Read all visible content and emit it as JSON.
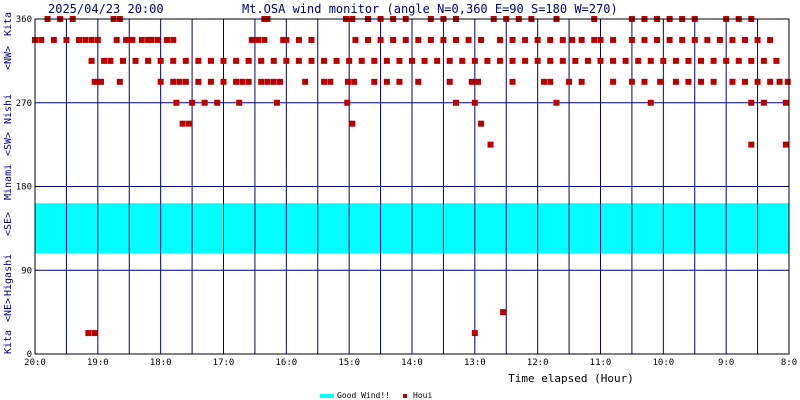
{
  "chart_data": {
    "type": "scatter",
    "title": "Mt.OSA wind monitor (angle N=0,360 E=90 S=180 W=270)",
    "timestamp": "2025/04/23 20:00",
    "xlabel": "Time elapsed (Hour)",
    "ylabel": "Kita <NE> Higashi <SE> Minami <SW> Nishi <NW> Kita",
    "x_ticks": [
      "20:0",
      "19:0",
      "18:0",
      "17:0",
      "16:0",
      "15:0",
      "14:0",
      "13:0",
      "12:0",
      "11:0",
      "10:0",
      "9:0",
      "8:0"
    ],
    "x_range_hours_elapsed": [
      0,
      12
    ],
    "y_ticks": [
      0,
      90,
      180,
      270,
      360
    ],
    "ylim": [
      0,
      360
    ],
    "grid": true,
    "good_wind_band": {
      "name": "Good Wind!!",
      "from": 108,
      "to": 162,
      "color": "#00ffff"
    },
    "series": [
      {
        "name": "Houi",
        "color": "#bb0000",
        "points": [
          [
            0.0,
            337.5
          ],
          [
            0.1,
            337.5
          ],
          [
            0.2,
            360
          ],
          [
            0.3,
            337.5
          ],
          [
            0.4,
            360
          ],
          [
            0.5,
            337.5
          ],
          [
            0.6,
            360
          ],
          [
            0.7,
            337.5
          ],
          [
            0.8,
            337.5
          ],
          [
            0.9,
            337.5
          ],
          [
            1.0,
            337.5
          ],
          [
            0.85,
            22.5
          ],
          [
            0.95,
            22.5
          ],
          [
            0.95,
            292.5
          ],
          [
            1.05,
            292.5
          ],
          [
            0.9,
            315
          ],
          [
            1.1,
            315
          ],
          [
            1.2,
            315
          ],
          [
            1.25,
            360
          ],
          [
            1.35,
            360
          ],
          [
            1.3,
            337.5
          ],
          [
            1.45,
            337.5
          ],
          [
            1.55,
            337.5
          ],
          [
            1.7,
            337.5
          ],
          [
            1.8,
            337.5
          ],
          [
            1.35,
            292.5
          ],
          [
            1.4,
            315
          ],
          [
            1.6,
            315
          ],
          [
            1.8,
            315
          ],
          [
            2.0,
            315
          ],
          [
            2.2,
            315
          ],
          [
            2.4,
            315
          ],
          [
            2.6,
            315
          ],
          [
            2.8,
            315
          ],
          [
            3.0,
            315
          ],
          [
            3.2,
            315
          ],
          [
            3.4,
            315
          ],
          [
            3.6,
            315
          ],
          [
            3.8,
            315
          ],
          [
            4.0,
            315
          ],
          [
            4.2,
            315
          ],
          [
            4.4,
            315
          ],
          [
            4.6,
            315
          ],
          [
            4.8,
            315
          ],
          [
            5.0,
            315
          ],
          [
            5.2,
            315
          ],
          [
            5.4,
            315
          ],
          [
            5.6,
            315
          ],
          [
            5.8,
            315
          ],
          [
            6.0,
            315
          ],
          [
            6.2,
            315
          ],
          [
            6.4,
            315
          ],
          [
            6.6,
            315
          ],
          [
            6.8,
            315
          ],
          [
            7.0,
            315
          ],
          [
            7.2,
            315
          ],
          [
            7.4,
            315
          ],
          [
            7.6,
            315
          ],
          [
            7.8,
            315
          ],
          [
            8.0,
            315
          ],
          [
            8.2,
            315
          ],
          [
            8.4,
            315
          ],
          [
            8.6,
            315
          ],
          [
            8.8,
            315
          ],
          [
            9.0,
            315
          ],
          [
            9.2,
            315
          ],
          [
            9.4,
            315
          ],
          [
            9.6,
            315
          ],
          [
            9.8,
            315
          ],
          [
            10.0,
            315
          ],
          [
            10.2,
            315
          ],
          [
            10.4,
            315
          ],
          [
            10.6,
            315
          ],
          [
            10.8,
            315
          ],
          [
            11.0,
            315
          ],
          [
            11.2,
            315
          ],
          [
            11.4,
            315
          ],
          [
            11.6,
            315
          ],
          [
            11.8,
            315
          ],
          [
            1.85,
            337.5
          ],
          [
            1.95,
            337.5
          ],
          [
            2.1,
            337.5
          ],
          [
            2.2,
            337.5
          ],
          [
            2.0,
            292.5
          ],
          [
            2.2,
            292.5
          ],
          [
            2.3,
            292.5
          ],
          [
            2.4,
            292.5
          ],
          [
            2.6,
            292.5
          ],
          [
            2.8,
            292.5
          ],
          [
            3.0,
            292.5
          ],
          [
            3.2,
            292.5
          ],
          [
            2.25,
            270
          ],
          [
            2.5,
            270
          ],
          [
            2.7,
            270
          ],
          [
            2.9,
            270
          ],
          [
            2.35,
            247.5
          ],
          [
            2.45,
            247.5
          ],
          [
            3.3,
            292.5
          ],
          [
            3.4,
            292.5
          ],
          [
            3.6,
            292.5
          ],
          [
            3.7,
            292.5
          ],
          [
            3.25,
            270
          ],
          [
            3.45,
            337.5
          ],
          [
            3.55,
            337.5
          ],
          [
            3.65,
            360
          ],
          [
            3.85,
            270
          ],
          [
            3.8,
            292.5
          ],
          [
            3.9,
            292.5
          ],
          [
            3.65,
            337.5
          ],
          [
            3.95,
            337.5
          ],
          [
            3.7,
            360
          ],
          [
            4.0,
            337.5
          ],
          [
            4.2,
            337.5
          ],
          [
            4.4,
            337.5
          ],
          [
            4.3,
            292.5
          ],
          [
            4.6,
            292.5
          ],
          [
            4.7,
            292.5
          ],
          [
            4.95,
            360
          ],
          [
            5.05,
            360
          ],
          [
            4.98,
            292.5
          ],
          [
            5.08,
            292.5
          ],
          [
            4.97,
            270
          ],
          [
            5.05,
            247.5
          ],
          [
            5.1,
            337.5
          ],
          [
            5.3,
            337.5
          ],
          [
            5.5,
            337.5
          ],
          [
            5.7,
            337.5
          ],
          [
            5.9,
            337.5
          ],
          [
            6.1,
            337.5
          ],
          [
            5.3,
            360
          ],
          [
            5.5,
            360
          ],
          [
            5.7,
            360
          ],
          [
            5.9,
            360
          ],
          [
            5.4,
            292.5
          ],
          [
            5.6,
            292.5
          ],
          [
            5.8,
            292.5
          ],
          [
            6.1,
            292.5
          ],
          [
            6.3,
            360
          ],
          [
            6.5,
            360
          ],
          [
            6.7,
            360
          ],
          [
            6.3,
            337.5
          ],
          [
            6.5,
            337.5
          ],
          [
            6.7,
            337.5
          ],
          [
            6.9,
            337.5
          ],
          [
            7.1,
            337.5
          ],
          [
            6.6,
            292.5
          ],
          [
            6.7,
            270
          ],
          [
            6.95,
            292.5
          ],
          [
            7.0,
            270
          ],
          [
            7.05,
            292.5
          ],
          [
            7.1,
            247.5
          ],
          [
            7.25,
            225
          ],
          [
            7.0,
            22.5
          ],
          [
            7.45,
            45
          ],
          [
            7.3,
            360
          ],
          [
            7.5,
            360
          ],
          [
            7.7,
            360
          ],
          [
            7.9,
            360
          ],
          [
            7.4,
            337.5
          ],
          [
            7.6,
            337.5
          ],
          [
            7.8,
            337.5
          ],
          [
            8.0,
            337.5
          ],
          [
            8.2,
            337.5
          ],
          [
            7.6,
            292.5
          ],
          [
            8.1,
            292.5
          ],
          [
            8.2,
            292.5
          ],
          [
            8.3,
            360
          ],
          [
            8.4,
            337.5
          ],
          [
            8.55,
            337.5
          ],
          [
            8.7,
            337.5
          ],
          [
            8.3,
            270
          ],
          [
            8.5,
            292.5
          ],
          [
            8.7,
            292.5
          ],
          [
            8.9,
            337.5
          ],
          [
            9.0,
            337.5
          ],
          [
            9.2,
            337.5
          ],
          [
            8.9,
            360
          ],
          [
            9.2,
            292.5
          ],
          [
            9.5,
            360
          ],
          [
            9.7,
            360
          ],
          [
            9.9,
            360
          ],
          [
            9.5,
            337.5
          ],
          [
            9.7,
            337.5
          ],
          [
            9.9,
            337.5
          ],
          [
            10.1,
            337.5
          ],
          [
            10.3,
            337.5
          ],
          [
            10.5,
            337.5
          ],
          [
            10.7,
            337.5
          ],
          [
            10.9,
            337.5
          ],
          [
            11.1,
            337.5
          ],
          [
            11.3,
            337.5
          ],
          [
            11.5,
            337.5
          ],
          [
            11.7,
            337.5
          ],
          [
            9.5,
            292.5
          ],
          [
            9.7,
            292.5
          ],
          [
            9.8,
            270
          ],
          [
            9.95,
            292.5
          ],
          [
            10.2,
            292.5
          ],
          [
            10.4,
            292.5
          ],
          [
            10.6,
            292.5
          ],
          [
            10.8,
            292.5
          ],
          [
            10.1,
            360
          ],
          [
            10.3,
            360
          ],
          [
            10.5,
            360
          ],
          [
            11.0,
            360
          ],
          [
            11.2,
            360
          ],
          [
            11.4,
            360
          ],
          [
            11.1,
            292.5
          ],
          [
            11.3,
            292.5
          ],
          [
            11.5,
            292.5
          ],
          [
            11.7,
            292.5
          ],
          [
            11.4,
            270
          ],
          [
            11.6,
            270
          ],
          [
            11.4,
            225
          ],
          [
            11.95,
            225
          ],
          [
            11.85,
            292.5
          ],
          [
            11.95,
            270
          ],
          [
            11.98,
            292.5
          ]
        ]
      }
    ],
    "legend_position": "bottom-center"
  },
  "labels": {
    "kita_bottom": "Kita",
    "ne": "<NE>",
    "higashi": "Higashi",
    "se": "<SE>",
    "minami": "Minami",
    "sw": "<SW>",
    "nishi": "Nishi",
    "nw": "<NW>",
    "kita_top": "Kita"
  }
}
